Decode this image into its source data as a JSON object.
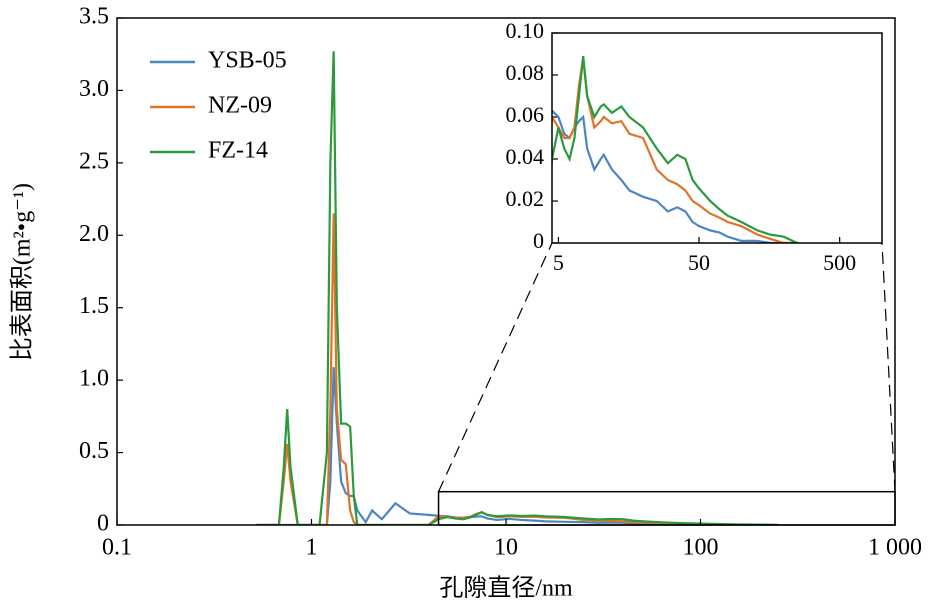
{
  "chart_data": {
    "type": "line",
    "xlabel": "孔隙直径/nm",
    "ylabel": "比表面积(m²•g⁻¹)",
    "xscale": "log",
    "xlim": [
      0.1,
      1000
    ],
    "ylim": [
      0,
      3.5
    ],
    "xticks": [
      0.1,
      1,
      10,
      100,
      {
        "value": 1000,
        "label": "1 000"
      }
    ],
    "yticks": [
      0,
      0.5,
      {
        "value": 1,
        "label": "1.0"
      },
      1.5,
      {
        "value": 2,
        "label": "2.0"
      },
      2.5,
      {
        "value": 3,
        "label": "3.0"
      },
      3.5
    ],
    "legend": "upper left",
    "x": [
      0.52,
      0.68,
      0.72,
      0.75,
      0.78,
      0.85,
      1.1,
      1.2,
      1.25,
      1.3,
      1.35,
      1.42,
      1.5,
      1.58,
      1.65,
      1.72,
      1.9,
      2.05,
      2.3,
      2.7,
      3.2,
      4,
      4.5,
      5,
      5.5,
      6,
      6.5,
      7,
      7.5,
      8,
      9,
      10,
      10.5,
      12,
      14,
      16,
      20,
      25,
      30,
      35,
      40,
      45,
      50,
      60,
      70,
      80,
      100,
      130,
      160,
      200,
      250
    ],
    "series": [
      {
        "name": "YSB-05",
        "color": "#4a86c0",
        "values": [
          0,
          0,
          0,
          0,
          0,
          0,
          0,
          0,
          0.3,
          1.09,
          0.7,
          0.3,
          0.22,
          0.2,
          0.2,
          0.1,
          0.02,
          0.1,
          0.04,
          0.15,
          0.08,
          0.07,
          0.063,
          0.06,
          0.052,
          0.05,
          0.055,
          0.058,
          0.06,
          0.045,
          0.035,
          0.04,
          0.042,
          0.035,
          0.03,
          0.025,
          0.022,
          0.02,
          0.015,
          0.017,
          0.015,
          0.01,
          0.008,
          0.006,
          0.005,
          0.003,
          0.001,
          0.001,
          0,
          0,
          0
        ]
      },
      {
        "name": "NZ-09",
        "color": "#e07328",
        "values": [
          0,
          0,
          0.3,
          0.56,
          0.3,
          0,
          0,
          0,
          0.8,
          2.15,
          0.8,
          0.45,
          0.42,
          0.1,
          0.02,
          0,
          0,
          0,
          0,
          0,
          0,
          0,
          0.06,
          0.055,
          0.05,
          0.05,
          0.055,
          0.075,
          0.088,
          0.07,
          0.055,
          0.058,
          0.06,
          0.057,
          0.058,
          0.052,
          0.05,
          0.035,
          0.03,
          0.028,
          0.025,
          0.02,
          0.018,
          0.014,
          0.012,
          0.01,
          0.008,
          0.004,
          0.002,
          0,
          0
        ]
      },
      {
        "name": "FZ-14",
        "color": "#2a9a3c",
        "values": [
          0,
          0,
          0.4,
          0.8,
          0.4,
          0,
          0,
          0.5,
          2.5,
          3.27,
          1.5,
          0.7,
          0.7,
          0.68,
          0.2,
          0,
          0,
          0,
          0,
          0,
          0,
          0,
          0.04,
          0.055,
          0.045,
          0.04,
          0.05,
          0.07,
          0.089,
          0.07,
          0.06,
          0.065,
          0.066,
          0.062,
          0.065,
          0.06,
          0.055,
          0.045,
          0.038,
          0.042,
          0.04,
          0.03,
          0.026,
          0.02,
          0.016,
          0.013,
          0.01,
          0.006,
          0.004,
          0.003,
          0
        ]
      }
    ],
    "inset": {
      "xscale": "log",
      "xlim": [
        4.5,
        1000
      ],
      "ylim": [
        0,
        0.1
      ],
      "xticks": [
        5,
        50,
        500
      ],
      "yticks": [
        0,
        0.02,
        0.04,
        0.06,
        0.08,
        {
          "value": 0.1,
          "label": "0.10"
        }
      ],
      "zoom_ylim": [
        0,
        0.23
      ]
    }
  }
}
